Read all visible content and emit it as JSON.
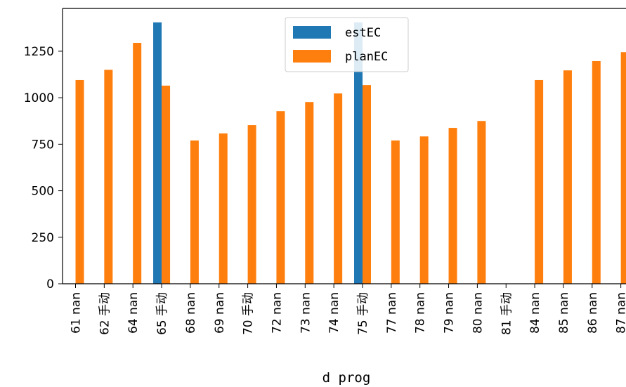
{
  "chart_data": {
    "type": "bar",
    "xlabel": "d prog",
    "ylabel": "",
    "ylim": [
      0,
      1480
    ],
    "yticks": [
      0,
      250,
      500,
      750,
      1000,
      1250
    ],
    "legend_position": "upper-center",
    "categories": [
      "61 nan",
      "62 手动",
      "64 nan",
      "65 手动",
      "68 nan",
      "69 nan",
      "70 手动",
      "72 nan",
      "73 nan",
      "74 nan",
      "75 手动",
      "77 nan",
      "78 nan",
      "79 nan",
      "80 nan",
      "81 手动",
      "84 nan",
      "85 nan",
      "86 nan",
      "87 nan"
    ],
    "series": [
      {
        "name": "estEC",
        "color": "#1f77b4",
        "values": [
          null,
          null,
          null,
          1405,
          null,
          null,
          null,
          null,
          null,
          null,
          1405,
          null,
          null,
          null,
          null,
          null,
          null,
          null,
          null,
          null
        ]
      },
      {
        "name": "planEC",
        "color": "#ff7f0e",
        "values": [
          1095,
          1150,
          1295,
          1065,
          770,
          808,
          853,
          928,
          977,
          1023,
          1068,
          770,
          792,
          838,
          875,
          null,
          1095,
          1147,
          1197,
          1245
        ]
      }
    ]
  }
}
